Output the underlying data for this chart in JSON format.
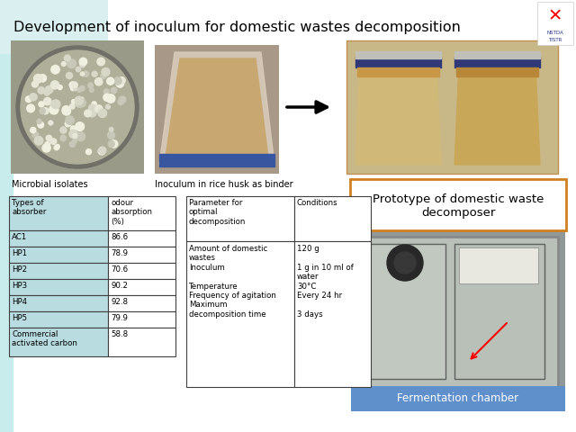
{
  "title": "Development of inoculum for domestic wastes decomposition",
  "title_fontsize": 11.5,
  "bg_color": "#c8ecec",
  "slide_bg": "#ffffff",
  "label_microbial": "Microbial isolates",
  "label_inoculum": "Inoculum in rice husk as binder",
  "table1_headers": [
    "Types of\nabsorber",
    "odour\nabsorption\n(%)"
  ],
  "table1_rows": [
    [
      "AC1",
      "86.6"
    ],
    [
      "HP1",
      "78.9"
    ],
    [
      "HP2",
      "70.6"
    ],
    [
      "HP3",
      "90.2"
    ],
    [
      "HP4",
      "92.8"
    ],
    [
      "HP5",
      "79.9"
    ],
    [
      "Commercial\nactivated carbon",
      "58.8"
    ]
  ],
  "table1_col1_bg": "#b8dce0",
  "table2_col1_header": "Parameter for\noptimal\ndecomposition",
  "table2_col2_header": "Conditions",
  "table2_col1_data": "Amount of domestic\nwastes\nInoculum\n\nTemperature\nFrequency of agitation\nMaximum\ndecomposition time",
  "table2_col2_data": "120 g\n\n1 g in 10 ml of\nwater\n30°C\nEvery 24 hr\n\n3 days",
  "prototype_label": "Prototype of domestic waste\ndecomposer",
  "prototype_box_color": "#d08020",
  "fermentation_label": "Fermentation chamber",
  "fermentation_bg": "#6090cc",
  "fermentation_text_color": "#ffffff"
}
